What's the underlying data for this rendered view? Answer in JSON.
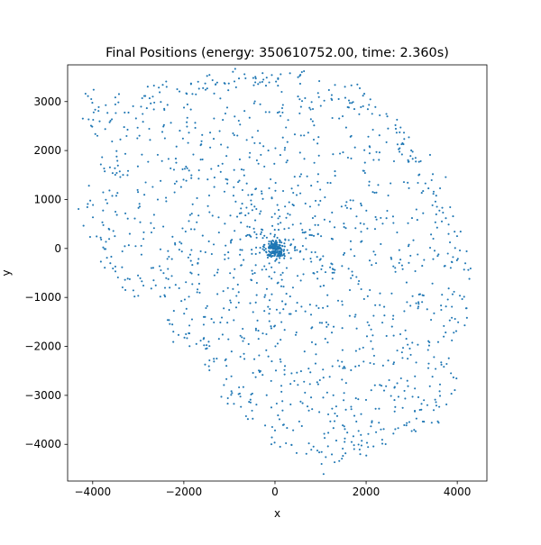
{
  "chart_data": {
    "type": "scatter",
    "title": "Final Positions (energy: 350610752.00, time: 2.360s)",
    "xlabel": "x",
    "ylabel": "y",
    "xlim": [
      -4550,
      4650
    ],
    "ylim": [
      -4750,
      3750
    ],
    "xticks": [
      -4000,
      -2000,
      0,
      2000,
      4000
    ],
    "yticks": [
      -4000,
      -3000,
      -2000,
      -1000,
      0,
      1000,
      2000,
      3000
    ],
    "xtick_labels": [
      "−4000",
      "−2000",
      "0",
      "2000",
      "4000"
    ],
    "ytick_labels": [
      "−4000",
      "−3000",
      "−2000",
      "−1000",
      "0",
      "1000",
      "2000",
      "3000"
    ],
    "grid": false,
    "legend": "none",
    "marker_color": "#1f77b4",
    "point_count": 1600,
    "cluster_center": [
      0,
      0
    ],
    "hull_outline": [
      [
        -4050,
        2550
      ],
      [
        -3900,
        2950
      ],
      [
        -3300,
        3050
      ],
      [
        -2600,
        3150
      ],
      [
        -2000,
        3200
      ],
      [
        -1500,
        3350
      ],
      [
        -1000,
        3450
      ],
      [
        -400,
        3450
      ],
      [
        200,
        3480
      ],
      [
        750,
        3560
      ],
      [
        1400,
        3400
      ],
      [
        1900,
        3000
      ],
      [
        2350,
        2700
      ],
      [
        2800,
        2350
      ],
      [
        3300,
        1700
      ],
      [
        3600,
        1000
      ],
      [
        3850,
        400
      ],
      [
        4100,
        -500
      ],
      [
        4200,
        -1500
      ],
      [
        3800,
        -2300
      ],
      [
        3650,
        -3200
      ],
      [
        3200,
        -3600
      ],
      [
        2550,
        -3750
      ],
      [
        2000,
        -4000
      ],
      [
        1400,
        -4150
      ],
      [
        1000,
        -4350
      ],
      [
        400,
        -4200
      ],
      [
        -200,
        -4050
      ],
      [
        -700,
        -3400
      ],
      [
        -1100,
        -2700
      ],
      [
        -1700,
        -2000
      ],
      [
        -2400,
        -1500
      ],
      [
        -3200,
        -900
      ],
      [
        -3700,
        -200
      ],
      [
        -4000,
        600
      ],
      [
        -4100,
        1400
      ]
    ],
    "dense_paths": [
      [
        [
          -4050,
          2550
        ],
        [
          -3900,
          2950
        ],
        [
          -3300,
          3050
        ],
        [
          -2600,
          3150
        ],
        [
          -2000,
          3200
        ],
        [
          -1500,
          3350
        ],
        [
          -1000,
          3450
        ],
        [
          -400,
          3450
        ],
        [
          200,
          3480
        ],
        [
          750,
          3560
        ]
      ],
      [
        [
          1400,
          3400
        ],
        [
          1900,
          3000
        ],
        [
          2350,
          2700
        ],
        [
          2800,
          2350
        ],
        [
          3300,
          1700
        ],
        [
          3600,
          1000
        ],
        [
          3850,
          400
        ],
        [
          4100,
          -500
        ],
        [
          4200,
          -1500
        ]
      ],
      [
        [
          3800,
          -2300
        ],
        [
          3650,
          -3200
        ],
        [
          3200,
          -3600
        ],
        [
          2550,
          -3750
        ],
        [
          2000,
          -4000
        ],
        [
          1400,
          -4150
        ],
        [
          1000,
          -4350
        ]
      ],
      [
        [
          -700,
          -3400
        ],
        [
          -1100,
          -2700
        ],
        [
          -1700,
          -2000
        ],
        [
          -2400,
          -1500
        ]
      ],
      [
        [
          -4100,
          1400
        ],
        [
          -4000,
          600
        ],
        [
          -3700,
          -200
        ],
        [
          -3200,
          -900
        ]
      ]
    ]
  }
}
